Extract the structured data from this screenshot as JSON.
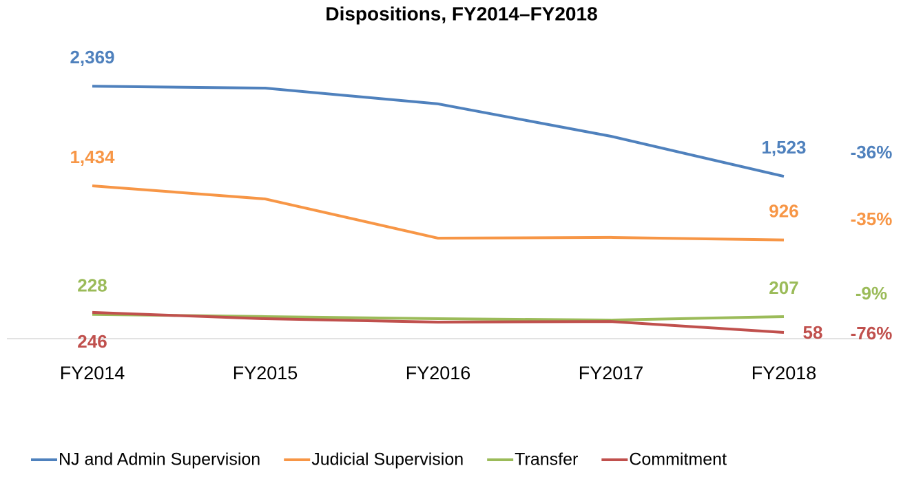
{
  "chart_data": {
    "type": "line",
    "title": "Dispositions, FY2014–FY2018",
    "categories": [
      "FY2014",
      "FY2015",
      "FY2016",
      "FY2017",
      "FY2018"
    ],
    "ylim": [
      0,
      2700
    ],
    "series": [
      {
        "name": "NJ and Admin Supervision",
        "color": "#4f81bd",
        "values": [
          2369,
          2351,
          2203,
          1899,
          1523
        ],
        "value_labels": [
          "2,369",
          null,
          null,
          null,
          "1,523"
        ],
        "change_label": "-36%"
      },
      {
        "name": "Judicial Supervision",
        "color": "#f79646",
        "values": [
          1434,
          1311,
          943,
          950,
          926
        ],
        "value_labels": [
          "1,434",
          null,
          null,
          null,
          "926"
        ],
        "change_label": "-35%"
      },
      {
        "name": "Transfer",
        "color": "#9bbb59",
        "values": [
          228,
          207,
          187,
          174,
          207
        ],
        "value_labels": [
          "228",
          null,
          null,
          null,
          "207"
        ],
        "change_label": "-9%"
      },
      {
        "name": "Commitment",
        "color": "#c0504d",
        "values": [
          246,
          187,
          155,
          161,
          58
        ],
        "value_labels": [
          "246",
          null,
          null,
          null,
          "58"
        ],
        "change_label": "-76%"
      }
    ]
  }
}
